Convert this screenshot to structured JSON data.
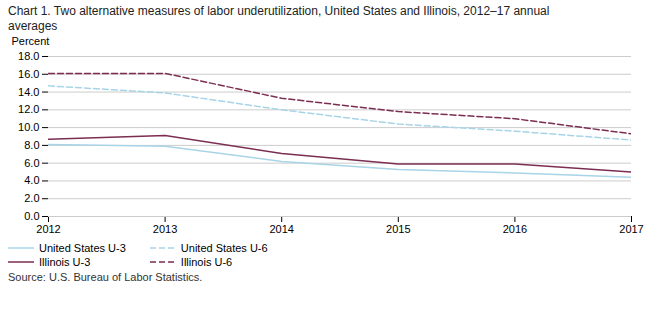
{
  "chart_data": {
    "type": "line",
    "title": "Chart 1. Two alternative measures of labor underutilization, United States and Illinois, 2012–17  annual",
    "subtitle": "averages",
    "y_label": "Percent",
    "caption": "Source: U.S. Bureau of Labor Statistics.",
    "x": [
      2012,
      2013,
      2014,
      2015,
      2016,
      2017
    ],
    "xlim": [
      2012,
      2017
    ],
    "xticks": [
      2012,
      2013,
      2014,
      2015,
      2016,
      2017
    ],
    "ylim": [
      0.0,
      18.0
    ],
    "yticks": [
      {
        "value": 0,
        "label": "0.0"
      },
      {
        "value": 2,
        "label": "2.0"
      },
      {
        "value": 4,
        "label": "4.0"
      },
      {
        "value": 6,
        "label": "6.0"
      },
      {
        "value": 8,
        "label": "8.0"
      },
      {
        "value": 10,
        "label": "10.0"
      },
      {
        "value": 12,
        "label": "12.0"
      },
      {
        "value": 14,
        "label": "14.0"
      },
      {
        "value": 16,
        "label": "16.0"
      },
      {
        "value": 18,
        "label": "18.0"
      }
    ],
    "grid": true,
    "legend": "lower left",
    "series": [
      {
        "name": "United States  U-3",
        "color": "#a8d4e8",
        "line_style": "solid",
        "values": [
          8.1,
          7.9,
          6.2,
          5.3,
          4.9,
          4.4
        ]
      },
      {
        "name": "United States  U-6",
        "color": "#a8d4e8",
        "line_style": "dashed",
        "values": [
          14.7,
          13.9,
          12.0,
          10.4,
          9.6,
          8.6
        ]
      },
      {
        "name": "Illinois  U-3",
        "color": "#7b2d52",
        "line_style": "solid",
        "values": [
          8.7,
          9.1,
          7.1,
          5.9,
          5.9,
          5.0
        ]
      },
      {
        "name": "Illinois  U-6",
        "color": "#7b2d52",
        "line_style": "dashed",
        "values": [
          16.1,
          16.1,
          13.3,
          11.8,
          11.0,
          9.3
        ]
      }
    ]
  }
}
